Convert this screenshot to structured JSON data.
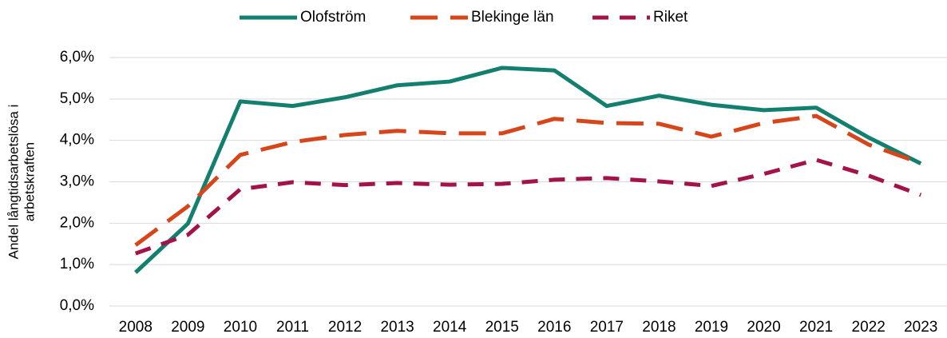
{
  "chart_data": {
    "type": "line",
    "ylabel": [
      "Andel långtidsarbetslösa i",
      "arbetskraften"
    ],
    "categories": [
      "2008",
      "2009",
      "2010",
      "2011",
      "2012",
      "2013",
      "2014",
      "2015",
      "2016",
      "2017",
      "2018",
      "2019",
      "2020",
      "2021",
      "2022",
      "2023"
    ],
    "series": [
      {
        "name": "Olofström",
        "color": "#13806f",
        "dash": "solid",
        "values": [
          0.81,
          1.99,
          4.94,
          4.83,
          5.04,
          5.33,
          5.42,
          5.75,
          5.69,
          4.83,
          5.08,
          4.86,
          4.73,
          4.79,
          4.07,
          3.44
        ]
      },
      {
        "name": "Blekinge län",
        "color": "#d6461a",
        "dash": "long",
        "values": [
          1.47,
          2.41,
          3.65,
          3.96,
          4.13,
          4.23,
          4.17,
          4.17,
          4.52,
          4.42,
          4.4,
          4.09,
          4.42,
          4.59,
          3.9,
          3.45
        ]
      },
      {
        "name": "Riket",
        "color": "#a3134a",
        "dash": "medium",
        "values": [
          1.27,
          1.72,
          2.82,
          2.99,
          2.92,
          2.97,
          2.93,
          2.95,
          3.05,
          3.09,
          3.01,
          2.9,
          3.19,
          3.53,
          3.15,
          2.68
        ]
      }
    ],
    "ylim": [
      0,
      6
    ],
    "yticks": [
      {
        "value": 0,
        "label": "0,0%"
      },
      {
        "value": 1,
        "label": "1,0%"
      },
      {
        "value": 2,
        "label": "2,0%"
      },
      {
        "value": 3,
        "label": "3,0%"
      },
      {
        "value": 4,
        "label": "4,0%"
      },
      {
        "value": 5,
        "label": "5,0%"
      },
      {
        "value": 6,
        "label": "6,0%"
      }
    ],
    "grid": true,
    "legend": "top"
  }
}
